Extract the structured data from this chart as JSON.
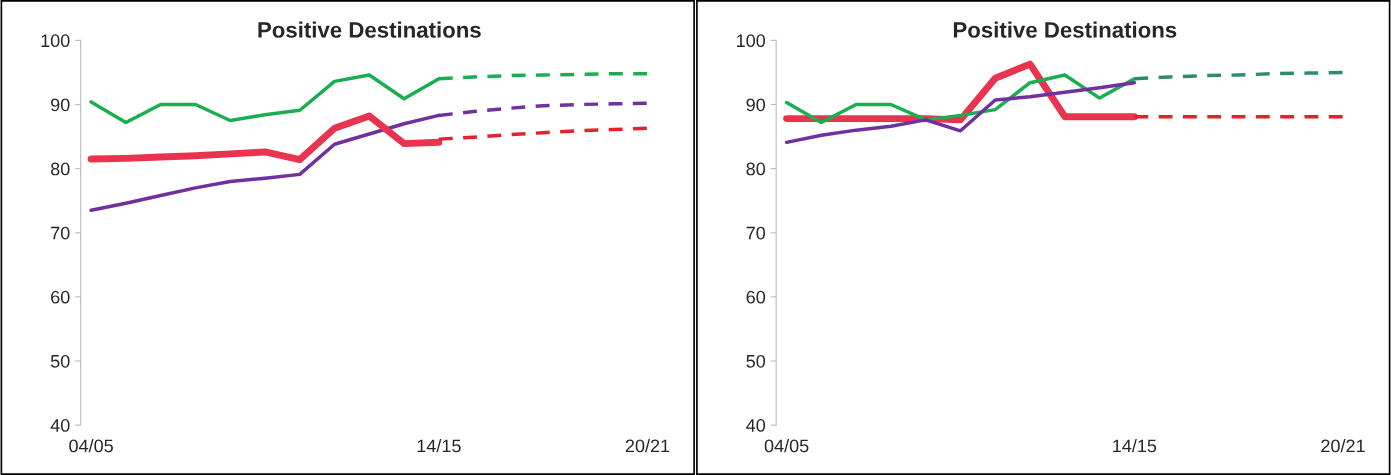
{
  "chart_data": [
    {
      "type": "line",
      "title": "Positive Destinations",
      "categories": [
        "04/05",
        null,
        null,
        null,
        null,
        null,
        null,
        null,
        null,
        null,
        "14/15",
        null,
        null,
        null,
        null,
        null,
        "20/21"
      ],
      "ylim": [
        40,
        100
      ],
      "yticks": [
        40,
        50,
        60,
        70,
        80,
        90,
        100
      ],
      "grid": false,
      "series": [
        {
          "color": "#7030a0",
          "line_style": "solid",
          "values": [
            73.5,
            74.6,
            75.8,
            77.0,
            78.0,
            78.5,
            79.1,
            83.8,
            85.4,
            87.0,
            88.3,
            null,
            null,
            null,
            null,
            null,
            null
          ]
        },
        {
          "color": "#7030a0",
          "line_style": "dashed",
          "values": [
            null,
            null,
            null,
            null,
            null,
            null,
            null,
            null,
            null,
            null,
            88.3,
            88.9,
            89.4,
            89.8,
            90.0,
            90.1,
            90.2
          ]
        },
        {
          "color": "#e8344e",
          "line_style": "solid",
          "values": [
            81.5,
            81.6,
            81.8,
            82.0,
            82.3,
            82.6,
            81.4,
            86.3,
            88.2,
            83.9,
            84.1,
            null,
            null,
            null,
            null,
            null,
            null
          ]
        },
        {
          "color": "#e8202a",
          "line_style": "dashed",
          "values": [
            null,
            null,
            null,
            null,
            null,
            null,
            null,
            null,
            null,
            null,
            84.6,
            84.9,
            85.3,
            85.6,
            85.9,
            86.1,
            86.3
          ]
        },
        {
          "color": "#1aae50",
          "line_style": "solid",
          "values": [
            90.4,
            87.2,
            90.0,
            90.0,
            87.5,
            88.4,
            89.1,
            93.6,
            94.6,
            90.9,
            94.0,
            null,
            null,
            null,
            null,
            null,
            null
          ]
        },
        {
          "color": "#1aae50",
          "line_style": "dashed",
          "values": [
            null,
            null,
            null,
            null,
            null,
            null,
            null,
            null,
            null,
            null,
            94.0,
            94.3,
            94.5,
            94.6,
            94.7,
            94.8,
            94.8
          ]
        }
      ]
    },
    {
      "type": "line",
      "title": "Positive Destinations",
      "categories": [
        "04/05",
        null,
        null,
        null,
        null,
        null,
        null,
        null,
        null,
        null,
        "14/15",
        null,
        null,
        null,
        null,
        null,
        "20/21"
      ],
      "ylim": [
        40,
        100
      ],
      "yticks": [
        40,
        50,
        60,
        70,
        80,
        90,
        100
      ],
      "grid": false,
      "series": [
        {
          "color": "#e8344e",
          "line_style": "solid",
          "values": [
            87.8,
            87.8,
            87.8,
            87.8,
            87.8,
            87.6,
            94.1,
            96.3,
            88.1,
            88.1,
            88.1,
            null,
            null,
            null,
            null,
            null,
            null
          ]
        },
        {
          "color": "#e8202a",
          "line_style": "dashed",
          "values": [
            null,
            null,
            null,
            null,
            null,
            null,
            null,
            null,
            null,
            null,
            88.1,
            88.1,
            88.1,
            88.1,
            88.1,
            88.1,
            88.1
          ]
        },
        {
          "color": "#1aae50",
          "line_style": "solid",
          "values": [
            90.3,
            87.2,
            90.0,
            90.0,
            87.6,
            88.3,
            89.2,
            93.4,
            94.6,
            91.0,
            94.0,
            null,
            null,
            null,
            null,
            null,
            null
          ]
        },
        {
          "color": "#7030a0",
          "line_style": "solid",
          "values": [
            84.1,
            85.2,
            86.0,
            86.6,
            87.6,
            85.9,
            90.7,
            91.2,
            91.9,
            92.6,
            93.4,
            null,
            null,
            null,
            null,
            null,
            null
          ]
        },
        {
          "color": "#2e8b6e",
          "line_style": "dashed",
          "values": [
            null,
            null,
            null,
            null,
            null,
            null,
            null,
            null,
            null,
            null,
            94.0,
            94.3,
            94.5,
            94.6,
            94.8,
            94.9,
            95.0
          ]
        }
      ]
    }
  ]
}
